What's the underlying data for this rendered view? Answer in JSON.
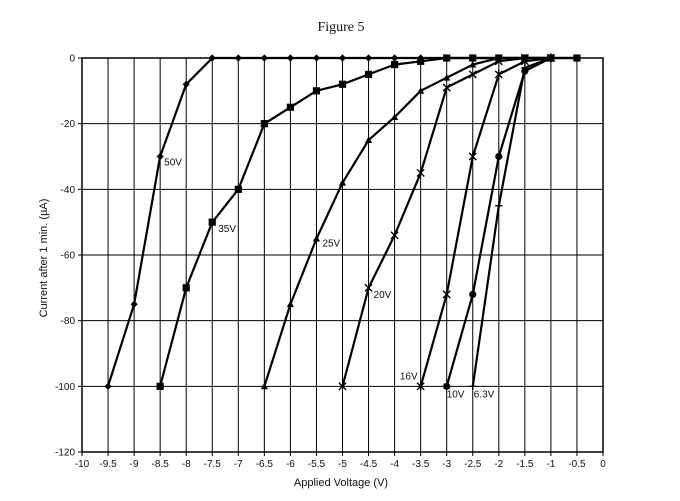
{
  "chart_data": {
    "type": "line",
    "title": "Figure 5",
    "xlabel": "Applied Voltage (V)",
    "ylabel": "Current after 1 min. (µA)",
    "xlim": [
      -10,
      0
    ],
    "ylim": [
      -120,
      0
    ],
    "xticks": [
      -10,
      -9.5,
      -9,
      -8.5,
      -8,
      -7.5,
      -7,
      -6.5,
      -6,
      -5.5,
      -5,
      -4.5,
      -4,
      -3.5,
      -3,
      -2.5,
      -2,
      -1.5,
      -1,
      -0.5,
      0
    ],
    "xtick_labels": [
      "-10",
      "-9.5",
      "-9",
      "-8.5",
      "-8",
      "-7.5",
      "-7",
      "-6.5",
      "-6",
      "-5.5",
      "-5",
      "-4.5",
      "-4",
      "-3.5",
      "-3",
      "-2.5",
      "-2",
      "-1.5",
      "-1",
      "-0.5",
      "0"
    ],
    "yticks": [
      0,
      -20,
      -40,
      -60,
      -80,
      -100,
      -120
    ],
    "ytick_labels": [
      "0",
      "-20",
      "-40",
      "-60",
      "-80",
      "-100",
      "-120"
    ],
    "grid": "vertical lines every 0.5 V, horizontal lines every 20 µA",
    "series": [
      {
        "name": "50V",
        "marker": "diamond",
        "x": [
          -9.5,
          -9,
          -8.5,
          -8,
          -7.5,
          -7,
          -6.5,
          -6,
          -5.5,
          -5,
          -4.5,
          -4,
          -3.5,
          -3,
          -2.5,
          -2,
          -1.5,
          -1,
          -0.5
        ],
        "y": [
          -100,
          -75,
          -30,
          -8,
          0,
          0,
          0,
          0,
          0,
          0,
          0,
          0,
          0,
          0,
          0,
          0,
          0,
          0,
          0
        ]
      },
      {
        "name": "35V",
        "marker": "square",
        "x": [
          -8.5,
          -8,
          -7.5,
          -7,
          -6.5,
          -6,
          -5.5,
          -5,
          -4.5,
          -4,
          -3.5,
          -3,
          -2.5,
          -2,
          -1.5,
          -1,
          -0.5
        ],
        "y": [
          -100,
          -70,
          -50,
          -40,
          -20,
          -15,
          -10,
          -8,
          -5,
          -2,
          -1,
          0,
          0,
          0,
          0,
          0,
          0
        ]
      },
      {
        "name": "25V",
        "marker": "triangle",
        "x": [
          -6.5,
          -6,
          -5.5,
          -5,
          -4.5,
          -4,
          -3.5,
          -3,
          -2.5,
          -2,
          -1.5,
          -1
        ],
        "y": [
          -100,
          -75,
          -55,
          -38,
          -25,
          -18,
          -10,
          -6,
          -2,
          0,
          0,
          0
        ]
      },
      {
        "name": "20V",
        "marker": "x",
        "x": [
          -5,
          -4.5,
          -4,
          -3.5,
          -3,
          -2.5,
          -2,
          -1.5,
          -1
        ],
        "y": [
          -100,
          -70,
          -54,
          -35,
          -9,
          -5,
          -1,
          0,
          0
        ]
      },
      {
        "name": "16V",
        "marker": "star",
        "x": [
          -3.5,
          -3,
          -2.5,
          -2,
          -1.5,
          -1
        ],
        "y": [
          -100,
          -72,
          -30,
          -5,
          -1,
          0
        ]
      },
      {
        "name": "10V",
        "marker": "circle",
        "x": [
          -3,
          -2.5,
          -2,
          -1.5,
          -1
        ],
        "y": [
          -100,
          -72,
          -30,
          -4,
          0
        ]
      },
      {
        "name": "6.3V",
        "marker": "plus",
        "x": [
          -2.5,
          -2,
          -1.5,
          -1
        ],
        "y": [
          -100,
          -45,
          -3,
          0
        ]
      }
    ],
    "annotations": [
      {
        "text": "50V",
        "x": -8.5,
        "y": -30
      },
      {
        "text": "35V",
        "x": -7.5,
        "y": -50
      },
      {
        "text": "25V",
        "x": -5.5,
        "y": -55
      },
      {
        "text": "20V",
        "x": -4.5,
        "y": -70
      },
      {
        "text": "16V",
        "x": -3.5,
        "y": -100
      },
      {
        "text": "10V",
        "x": -3,
        "y": -100
      },
      {
        "text": "6.3V",
        "x": -2.5,
        "y": -100
      }
    ]
  }
}
